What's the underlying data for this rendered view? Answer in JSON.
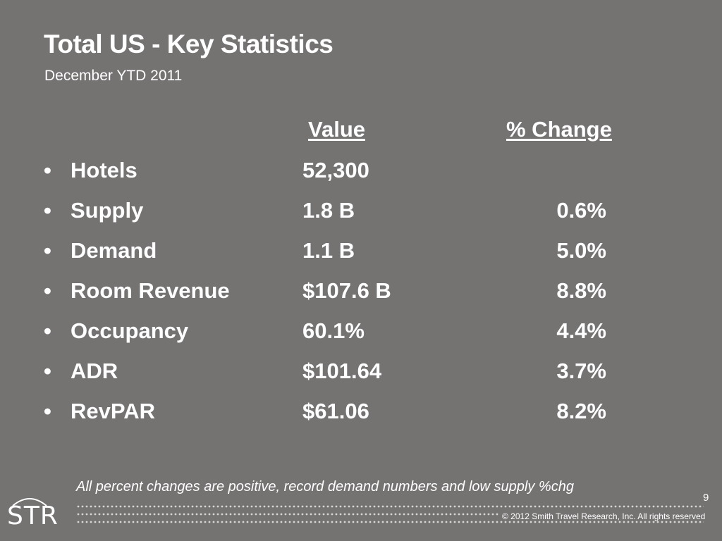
{
  "slide": {
    "title": "Total US - Key Statistics",
    "subtitle": "December YTD 2011",
    "columns": {
      "value": "Value",
      "change": "% Change"
    },
    "rows": [
      {
        "label": "Hotels",
        "value": "52,300",
        "change": ""
      },
      {
        "label": "Supply",
        "value": "1.8 B",
        "change": "0.6%"
      },
      {
        "label": "Demand",
        "value": "1.1 B",
        "change": "5.0%"
      },
      {
        "label": "Room Revenue",
        "value": "$107.6 B",
        "change": "8.8%"
      },
      {
        "label": "Occupancy",
        "value": "60.1%",
        "change": "4.4%"
      },
      {
        "label": "ADR",
        "value": "$101.64",
        "change": "3.7%"
      },
      {
        "label": "RevPAR",
        "value": "$61.06",
        "change": "8.2%"
      }
    ],
    "bullet": "•",
    "footnote": "All percent changes are positive, record demand numbers and low supply %chg",
    "page_number": "9"
  },
  "footer": {
    "logo": "STR",
    "copyright": "© 2012 Smith Travel Research, Inc. All rights reserved"
  },
  "colors": {
    "background": "#757272",
    "text": "#ffffff",
    "dots": "#ffffff"
  }
}
